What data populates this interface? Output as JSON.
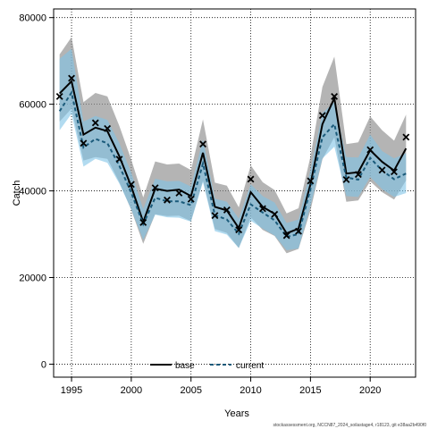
{
  "chart_data": {
    "type": "line",
    "xlabel": "Years",
    "ylabel": "Catch",
    "xlim": [
      1993.5,
      2023.8
    ],
    "ylim": [
      -3000,
      82000
    ],
    "x_ticks": [
      1995,
      2000,
      2005,
      2010,
      2015,
      2020
    ],
    "y_ticks": [
      0,
      20000,
      40000,
      60000,
      80000
    ],
    "grid": true,
    "legend_position": "bottom-center",
    "footer": "stockassessment.org, NCCN87_2024_soilastage4, r18123, git e38aa2b490f0",
    "x": [
      1994,
      1995,
      1996,
      1997,
      1998,
      1999,
      2000,
      2001,
      2002,
      2003,
      2004,
      2005,
      2006,
      2007,
      2008,
      2009,
      2010,
      2011,
      2012,
      2013,
      2014,
      2015,
      2016,
      2017,
      2018,
      2019,
      2020,
      2021,
      2022,
      2023
    ],
    "observed": {
      "name": "observed",
      "marker": "x",
      "values": [
        61800,
        66000,
        51000,
        55700,
        54400,
        47300,
        41500,
        32700,
        40700,
        37900,
        39500,
        38100,
        50800,
        34300,
        35600,
        31000,
        42700,
        35900,
        34600,
        29700,
        30700,
        42300,
        57400,
        61800,
        42600,
        43800,
        49500,
        44800,
        44400,
        52400
      ]
    },
    "series": [
      {
        "name": "base",
        "style": "solid",
        "color": "#000000",
        "values": [
          62500,
          65300,
          53000,
          54600,
          53800,
          48000,
          41000,
          32800,
          40500,
          40000,
          40300,
          38800,
          48800,
          36300,
          35500,
          31400,
          39700,
          36300,
          34700,
          30200,
          31300,
          41500,
          55400,
          61400,
          44000,
          44300,
          49400,
          46700,
          44700,
          49800
        ],
        "lower": [
          56000,
          59000,
          47000,
          47800,
          47400,
          42000,
          35600,
          27800,
          34600,
          34200,
          34300,
          33000,
          42400,
          31200,
          30300,
          26800,
          33900,
          31000,
          29600,
          25600,
          26600,
          35500,
          47300,
          52400,
          37500,
          37800,
          42200,
          39700,
          38000,
          42400
        ],
        "upper": [
          71500,
          75500,
          60500,
          62600,
          61800,
          55000,
          47200,
          38500,
          46800,
          46100,
          46300,
          44800,
          56500,
          41900,
          41200,
          36200,
          45900,
          42000,
          40200,
          34800,
          36000,
          47900,
          64000,
          71000,
          50800,
          51200,
          57200,
          54000,
          51600,
          57600
        ]
      },
      {
        "name": "current",
        "style": "dashed",
        "color": "#1a5a7a",
        "values": [
          58400,
          62700,
          50000,
          52000,
          51000,
          45800,
          39600,
          32300,
          38400,
          37600,
          37600,
          36700,
          46300,
          34400,
          33400,
          30100,
          36900,
          35000,
          33200,
          29400,
          30000,
          40400,
          52400,
          55400,
          43100,
          42600,
          47600,
          44700,
          42700,
          44000
        ],
        "lower": [
          54000,
          57800,
          45600,
          47400,
          46500,
          41700,
          35700,
          28700,
          34500,
          33900,
          33800,
          32900,
          42000,
          30700,
          29900,
          26800,
          33100,
          31300,
          29700,
          26300,
          26700,
          36500,
          47500,
          50200,
          38800,
          38600,
          43200,
          40400,
          38600,
          39500
        ],
        "upper": [
          70500,
          72800,
          56000,
          57300,
          56400,
          51000,
          44200,
          35800,
          42800,
          42200,
          42300,
          41000,
          51900,
          38200,
          37500,
          33600,
          41500,
          38800,
          37300,
          32600,
          33400,
          44800,
          58000,
          60500,
          47800,
          47700,
          53000,
          49200,
          47500,
          48700
        ]
      }
    ]
  },
  "colors": {
    "base_band": "#8c8c8c",
    "current_band": "#7ec3e6",
    "observed": "#000000"
  }
}
